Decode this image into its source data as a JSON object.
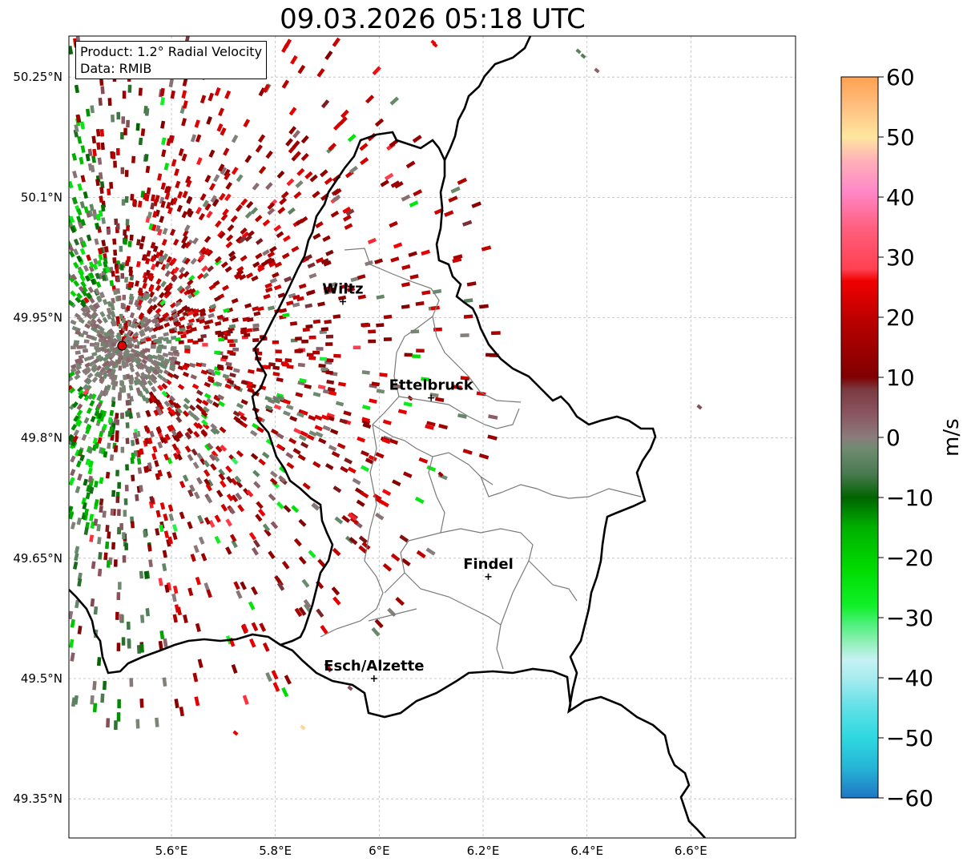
{
  "title": "09.03.2026 05:18 UTC",
  "info": {
    "product": "Product: 1.2° Radial Velocity",
    "source": "Data: RMIB"
  },
  "map": {
    "lon_range": [
      5.4,
      6.8
    ],
    "lat_range": [
      49.3,
      50.3
    ],
    "x_ticks": [
      {
        "value": 5.6,
        "label": "5.6°E"
      },
      {
        "value": 5.8,
        "label": "5.8°E"
      },
      {
        "value": 6.0,
        "label": "6°E"
      },
      {
        "value": 6.2,
        "label": "6.2°E"
      },
      {
        "value": 6.4,
        "label": "6.4°E"
      },
      {
        "value": 6.6,
        "label": "6.6°E"
      }
    ],
    "y_ticks": [
      {
        "value": 49.35,
        "label": "49.35°N"
      },
      {
        "value": 49.5,
        "label": "49.5°N"
      },
      {
        "value": 49.65,
        "label": "49.65°N"
      },
      {
        "value": 49.8,
        "label": "49.8°N"
      },
      {
        "value": 49.95,
        "label": "49.95°N"
      },
      {
        "value": 50.1,
        "label": "50.1°N"
      },
      {
        "value": 50.25,
        "label": "50.25°N"
      }
    ],
    "radar_site": {
      "lon": 5.505,
      "lat": 49.915
    },
    "cities": [
      {
        "name": "Wiltz",
        "lon": 5.93,
        "lat": 49.97
      },
      {
        "name": "Ettelbruck",
        "lon": 6.1,
        "lat": 49.85
      },
      {
        "name": "Findel",
        "lon": 6.21,
        "lat": 49.627
      },
      {
        "name": "Esch/Alzette",
        "lon": 5.99,
        "lat": 49.5
      }
    ]
  },
  "colorbar": {
    "unit": "m/s",
    "min": -60,
    "max": 60,
    "ticks": [
      {
        "value": 60,
        "label": "60"
      },
      {
        "value": 50,
        "label": "50"
      },
      {
        "value": 40,
        "label": "40"
      },
      {
        "value": 30,
        "label": "30"
      },
      {
        "value": 20,
        "label": "20"
      },
      {
        "value": 10,
        "label": "10"
      },
      {
        "value": 0,
        "label": "0"
      },
      {
        "value": -10,
        "label": "−10"
      },
      {
        "value": -20,
        "label": "−20"
      },
      {
        "value": -30,
        "label": "−30"
      },
      {
        "value": -40,
        "label": "−40"
      },
      {
        "value": -50,
        "label": "−50"
      },
      {
        "value": -60,
        "label": "−60"
      }
    ],
    "stops": [
      {
        "value": -60,
        "color": "#1f77c4"
      },
      {
        "value": -55,
        "color": "#26b4d6"
      },
      {
        "value": -50,
        "color": "#2ed8e0"
      },
      {
        "value": -45,
        "color": "#5fe0e6"
      },
      {
        "value": -40,
        "color": "#a8ecf0"
      },
      {
        "value": -37,
        "color": "#c6f2f4"
      },
      {
        "value": -34,
        "color": "#8ff0b4"
      },
      {
        "value": -31,
        "color": "#4cf07a"
      },
      {
        "value": -28,
        "color": "#10f028"
      },
      {
        "value": -22,
        "color": "#00dc00"
      },
      {
        "value": -15,
        "color": "#00b000"
      },
      {
        "value": -10,
        "color": "#006400"
      },
      {
        "value": -6,
        "color": "#4a7a50"
      },
      {
        "value": -2,
        "color": "#6e8b70"
      },
      {
        "value": 0,
        "color": "#8a7c7c"
      },
      {
        "value": 4,
        "color": "#8a5560"
      },
      {
        "value": 8,
        "color": "#7a3a40"
      },
      {
        "value": 10,
        "color": "#800000"
      },
      {
        "value": 18,
        "color": "#b00000"
      },
      {
        "value": 26,
        "color": "#f00000"
      },
      {
        "value": 28,
        "color": "#ff4050"
      },
      {
        "value": 35,
        "color": "#ff6080"
      },
      {
        "value": 41,
        "color": "#ff88c8"
      },
      {
        "value": 46,
        "color": "#ffb0b8"
      },
      {
        "value": 50,
        "color": "#ffe6a0"
      },
      {
        "value": 55,
        "color": "#ffc080"
      },
      {
        "value": 60,
        "color": "#ffa050"
      }
    ]
  }
}
